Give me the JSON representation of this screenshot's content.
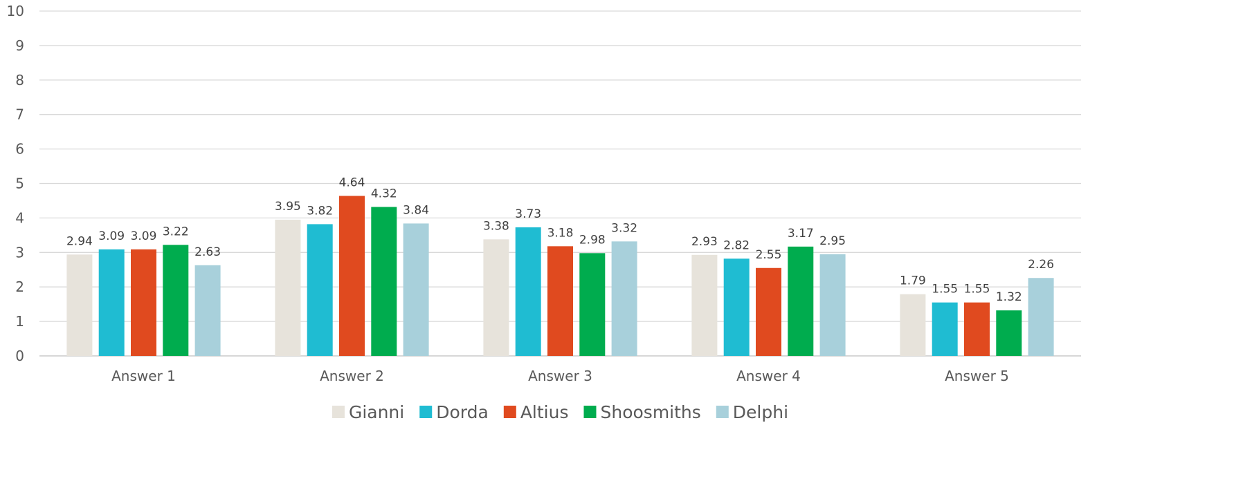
{
  "chart_data": {
    "type": "bar",
    "categories": [
      "Answer 1",
      "Answer 2",
      "Answer 3",
      "Answer 4",
      "Answer 5"
    ],
    "series": [
      {
        "name": "Gianni",
        "color": "#E7E3DB",
        "values": [
          2.94,
          3.95,
          3.38,
          2.93,
          1.79
        ]
      },
      {
        "name": "Dorda",
        "color": "#1FBCD2",
        "values": [
          3.09,
          3.82,
          3.73,
          2.82,
          1.55
        ]
      },
      {
        "name": "Altius",
        "color": "#E04A1F",
        "values": [
          3.09,
          4.64,
          3.18,
          2.55,
          1.55
        ]
      },
      {
        "name": "Shoosmiths",
        "color": "#00AC4E",
        "values": [
          3.22,
          4.32,
          2.98,
          3.17,
          1.32
        ]
      },
      {
        "name": "Delphi",
        "color": "#A8D0DB",
        "values": [
          2.63,
          3.84,
          3.32,
          2.95,
          2.26
        ]
      }
    ],
    "ylim": [
      0,
      10
    ],
    "yticks": [
      "0",
      "1",
      "2",
      "3",
      "4",
      "5",
      "6",
      "7",
      "8",
      "9",
      "10"
    ],
    "grid": true,
    "legend_position": "bottom"
  }
}
